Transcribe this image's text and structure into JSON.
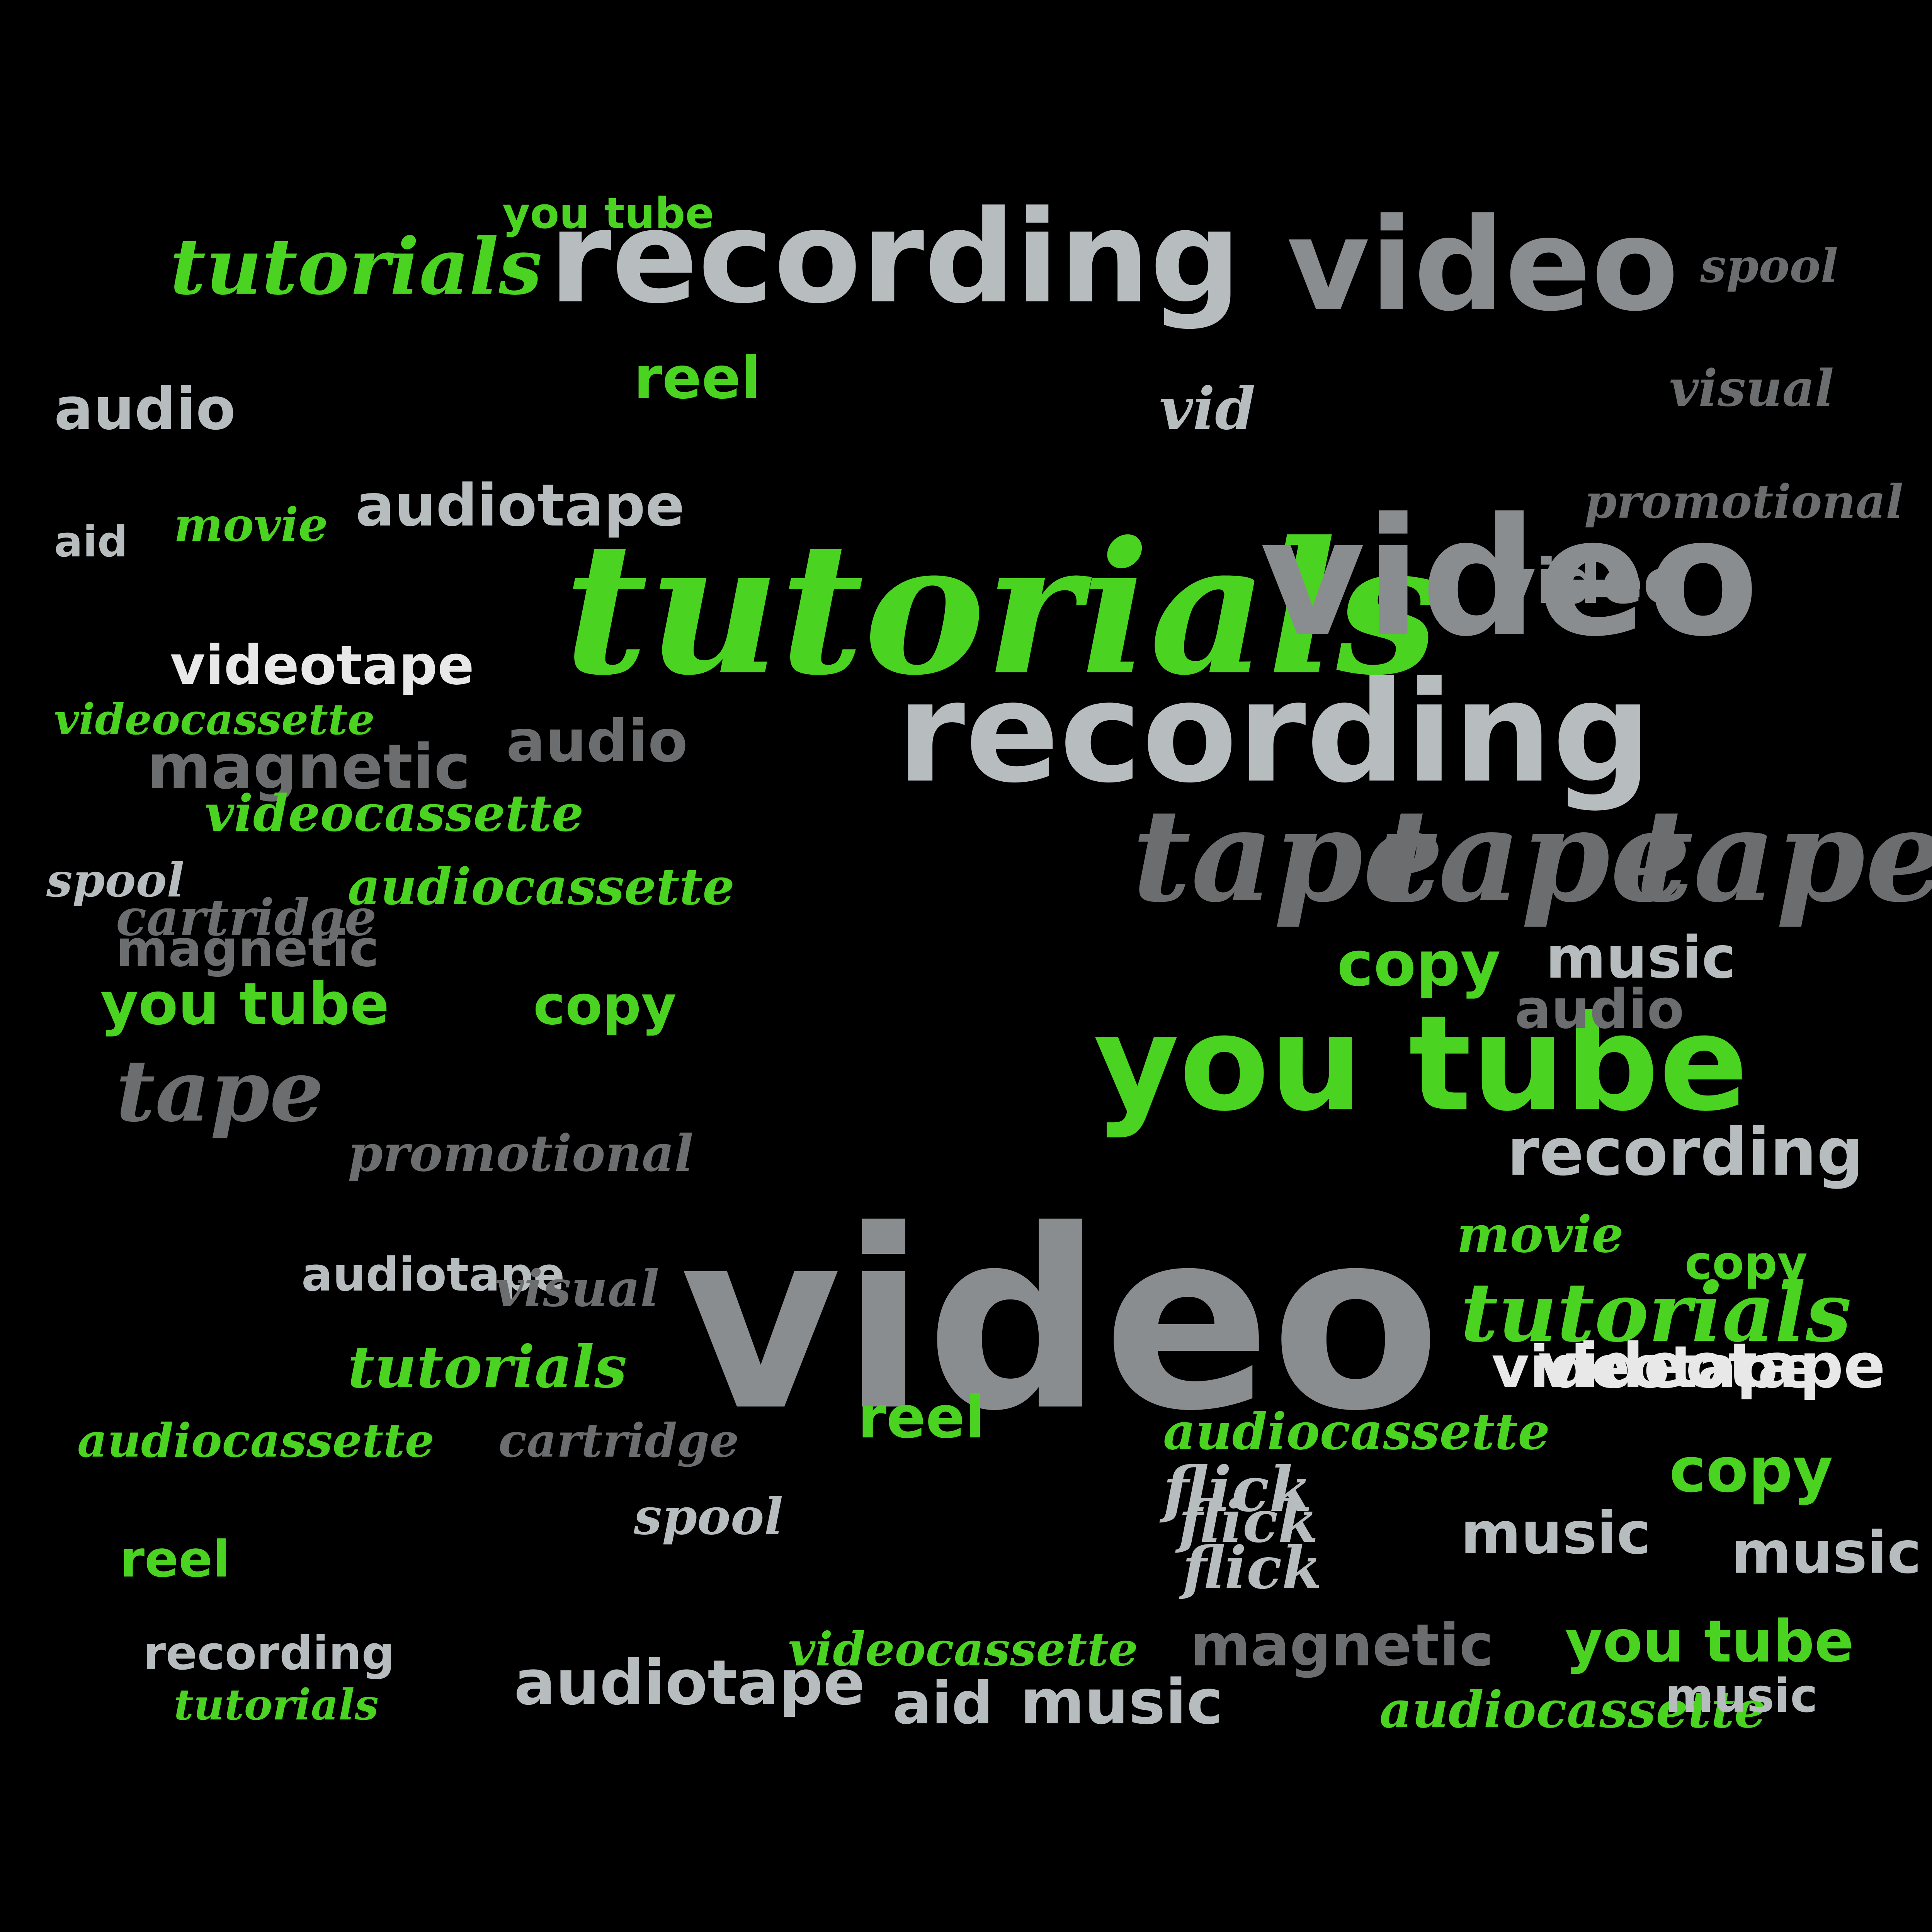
{
  "colors": {
    "background": "#000000",
    "green": "#4bd321",
    "light_gray": "#b7bcbf",
    "mid_gray": "#8a8d8f",
    "dark_gray": "#6b6d6e",
    "white": "#e8e8e8"
  },
  "icon_names": [
    "video-camera-icon",
    "reel-icon"
  ],
  "words": [
    "recording",
    "video",
    "tutorials",
    "video",
    "recording",
    "tape",
    "tape",
    "tape",
    "you tube",
    "video",
    "tutorials",
    "you tube",
    "copy",
    "audiotape",
    "recording",
    "magnetic",
    "music",
    "audiocassette",
    "videotape",
    "tutorials",
    "copy",
    "reel",
    "audiocassette",
    "videocassette",
    "audiotape",
    "flick",
    "spool",
    "cartridge",
    "promotional",
    "promotional",
    "visual",
    "videotape",
    "videocassette",
    "audiocassette",
    "magnetic",
    "tape",
    "audio",
    "audio",
    "movie",
    "aid",
    "vid",
    "spool",
    "copy",
    "reel",
    "movie",
    "audiotape",
    "tutorials",
    "you tube",
    "videotape",
    "audio",
    "video",
    "spool",
    "music",
    "recording",
    "music",
    "you tube",
    "copy",
    "tutorials",
    "videocassette",
    "audiocassette",
    "reel",
    "visual",
    "aid",
    "flick",
    "flick",
    "cartridge",
    "magnetic",
    "music",
    "music"
  ]
}
